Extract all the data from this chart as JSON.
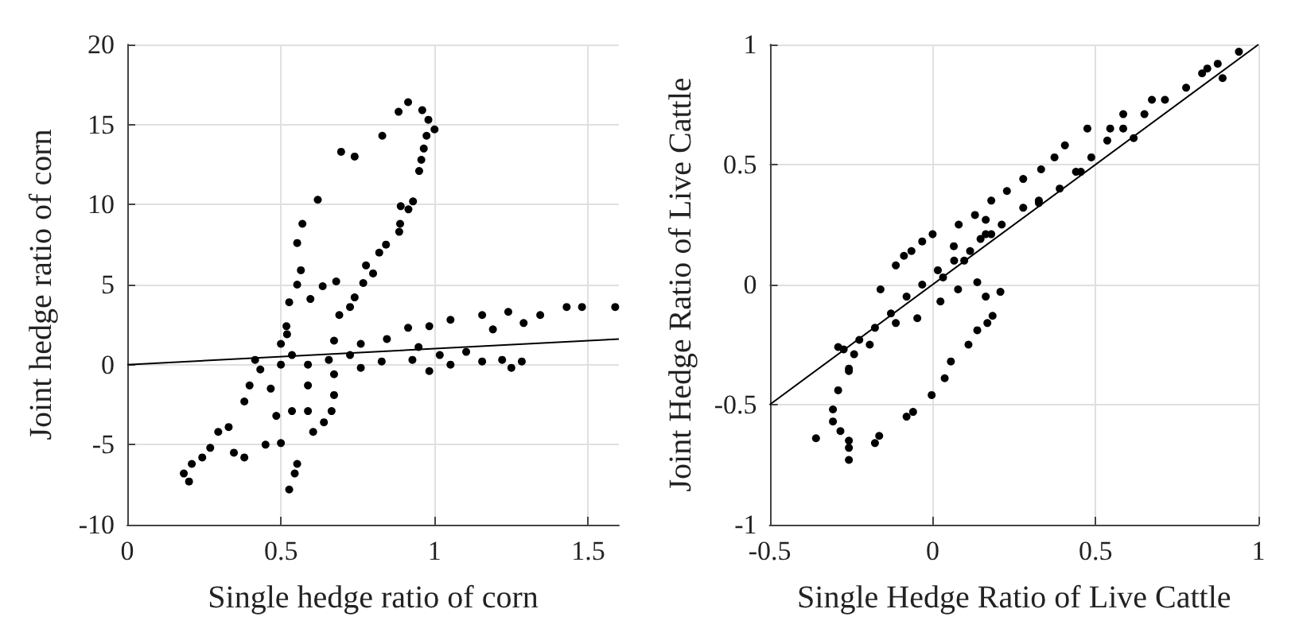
{
  "chart_data": [
    {
      "type": "scatter",
      "xlabel": "Single hedge ratio of corn",
      "ylabel": "Joint hedge ratio of corn",
      "xlim": [
        0,
        1.6
      ],
      "ylim": [
        -10,
        20
      ],
      "xticks": [
        0,
        0.5,
        1,
        1.5
      ],
      "yticks": [
        -10,
        -5,
        0,
        5,
        10,
        15,
        20
      ],
      "grid": true,
      "marker": "circle",
      "series": [
        {
          "color": "#000000",
          "x": [
            0.914,
            0.883,
            0.96,
            0.98,
            1.0,
            0.974,
            0.965,
            0.957,
            0.95,
            0.83,
            0.696,
            0.74,
            0.62,
            0.93,
            0.915,
            0.89,
            0.888,
            0.885,
            0.842,
            0.82,
            0.57,
            0.553,
            0.565,
            0.777,
            0.8,
            0.768,
            0.74,
            0.725,
            0.69,
            0.636,
            0.68,
            0.596,
            0.553,
            0.527,
            0.518,
            0.673,
            0.76,
            0.845,
            0.914,
            0.983,
            1.052,
            1.155,
            1.24,
            1.344,
            1.43,
            1.48,
            1.588,
            1.29,
            1.19,
            0.948,
            1.017,
            1.103,
            0.983,
            1.052,
            1.155,
            1.22,
            1.284,
            1.25,
            0.828,
            0.76,
            0.928,
            0.52,
            0.536,
            0.5,
            0.588,
            0.656,
            0.673,
            0.433,
            0.398,
            0.467,
            0.588,
            0.673,
            0.665,
            0.64,
            0.605,
            0.588,
            0.536,
            0.485,
            0.5,
            0.45,
            0.553,
            0.545,
            0.527,
            0.381,
            0.347,
            0.381,
            0.33,
            0.296,
            0.27,
            0.244,
            0.21,
            0.184,
            0.201,
            0.416,
            0.5,
            0.725
          ],
          "values": [
            16.4,
            15.8,
            15.9,
            15.3,
            14.7,
            14.3,
            13.5,
            12.8,
            12.1,
            14.3,
            13.3,
            13.0,
            10.3,
            10.2,
            9.7,
            9.9,
            8.8,
            8.3,
            7.5,
            7.0,
            8.8,
            7.6,
            5.9,
            6.2,
            5.7,
            5.1,
            4.2,
            3.6,
            3.1,
            4.9,
            5.2,
            4.1,
            5.0,
            3.9,
            2.4,
            1.5,
            1.3,
            1.6,
            2.3,
            2.4,
            2.8,
            3.1,
            3.3,
            3.1,
            3.6,
            3.6,
            3.6,
            2.6,
            2.2,
            1.1,
            0.6,
            0.8,
            -0.4,
            0.0,
            0.2,
            0.3,
            0.2,
            -0.2,
            0.2,
            -0.2,
            0.3,
            1.9,
            0.6,
            0.0,
            0.0,
            0.3,
            -0.6,
            -0.3,
            -1.3,
            -1.5,
            -1.3,
            -1.9,
            -2.9,
            -3.6,
            -4.2,
            -2.9,
            -2.9,
            -3.2,
            -4.9,
            -5.0,
            -6.2,
            -6.8,
            -7.8,
            -5.8,
            -5.5,
            -2.3,
            -3.9,
            -4.2,
            -5.2,
            -5.8,
            -6.2,
            -6.8,
            -7.3,
            0.3,
            1.3,
            0.6
          ]
        },
        {
          "type": "line",
          "marker": "none",
          "color": "#000000",
          "x": [
            0,
            1.6
          ],
          "values": [
            0,
            1.6
          ]
        }
      ]
    },
    {
      "type": "scatter",
      "xlabel": "Single Hedge Ratio of Live Cattle",
      "ylabel": "Joint Hedge Ratio of Live Cattle",
      "xlim": [
        -0.5,
        1
      ],
      "ylim": [
        -1,
        1
      ],
      "xticks": [
        -0.5,
        0,
        0.5,
        1
      ],
      "yticks": [
        -1,
        -0.5,
        0,
        0.5,
        1
      ],
      "grid": true,
      "marker": "circle",
      "series": [
        {
          "color": "#000000",
          "x": [
            0.94,
            0.875,
            0.827,
            0.778,
            0.713,
            0.65,
            0.585,
            0.536,
            0.487,
            0.44,
            0.39,
            0.326,
            0.278,
            0.212,
            0.163,
            0.115,
            0.066,
            0.016,
            -0.032,
            -0.08,
            -0.128,
            -0.177,
            -0.225,
            -0.273,
            -0.29,
            0.843,
            0.89,
            0.673,
            0.585,
            0.545,
            0.475,
            0.406,
            0.374,
            0.333,
            0.278,
            0.228,
            0.18,
            0.13,
            0.08,
            0.0,
            -0.065,
            -0.113,
            -0.16,
            -0.032,
            -0.088,
            0.065,
            0.163,
            0.147,
            0.617,
            0.455,
            0.326,
            0.18,
            0.097,
            0.032,
            -0.047,
            -0.113,
            -0.193,
            -0.241,
            -0.257,
            -0.257,
            -0.29,
            -0.306,
            -0.306,
            -0.283,
            -0.358,
            -0.257,
            -0.257,
            -0.257,
            -0.177,
            -0.164,
            -0.08,
            -0.06,
            -0.003,
            0.037,
            0.056,
            0.11,
            0.137,
            0.168,
            0.184,
            0.208,
            0.163,
            0.137,
            0.078,
            0.024
          ],
          "values": [
            0.97,
            0.92,
            0.88,
            0.82,
            0.77,
            0.71,
            0.65,
            0.6,
            0.53,
            0.47,
            0.4,
            0.35,
            0.32,
            0.25,
            0.21,
            0.14,
            0.1,
            0.06,
            0.0,
            -0.05,
            -0.12,
            -0.18,
            -0.23,
            -0.27,
            -0.26,
            0.9,
            0.86,
            0.77,
            0.71,
            0.65,
            0.65,
            0.58,
            0.53,
            0.48,
            0.44,
            0.39,
            0.35,
            0.29,
            0.25,
            0.21,
            0.14,
            0.08,
            -0.02,
            0.18,
            0.12,
            0.16,
            0.27,
            0.19,
            0.61,
            0.47,
            0.34,
            0.21,
            0.1,
            0.03,
            -0.14,
            -0.16,
            -0.25,
            -0.29,
            -0.35,
            -0.36,
            -0.44,
            -0.52,
            -0.57,
            -0.61,
            -0.64,
            -0.65,
            -0.68,
            -0.73,
            -0.66,
            -0.63,
            -0.55,
            -0.53,
            -0.46,
            -0.39,
            -0.32,
            -0.25,
            -0.19,
            -0.16,
            -0.13,
            -0.03,
            -0.05,
            0.01,
            -0.02,
            -0.07
          ]
        },
        {
          "type": "line",
          "marker": "none",
          "color": "#000000",
          "x": [
            -0.5,
            1
          ],
          "values": [
            -0.5,
            1
          ]
        }
      ]
    }
  ]
}
